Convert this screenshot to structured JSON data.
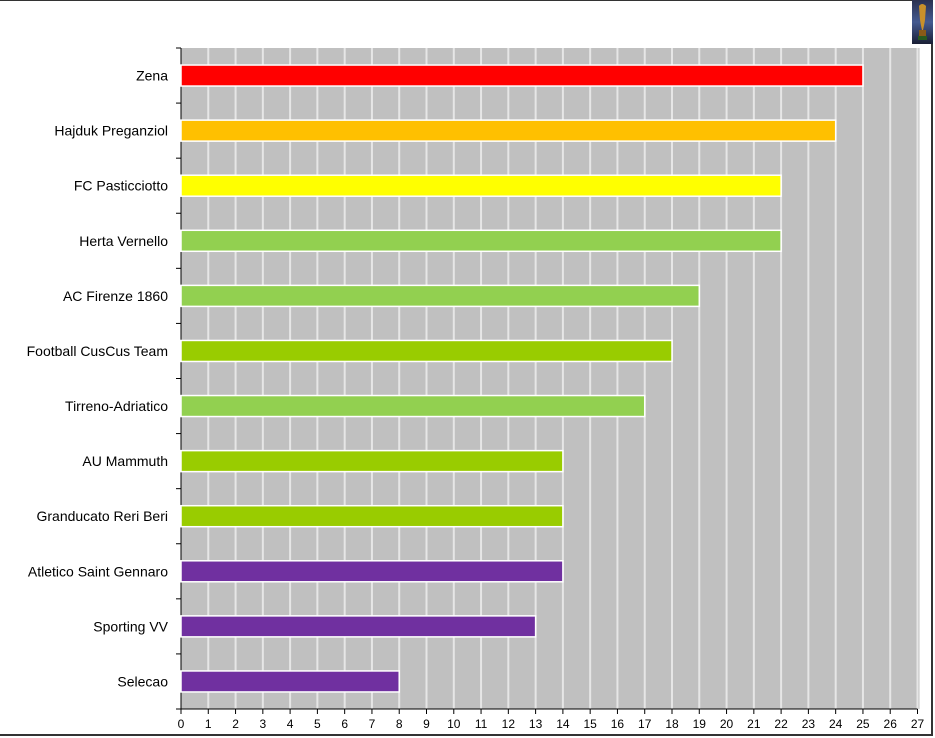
{
  "chart_data": {
    "type": "bar",
    "orientation": "horizontal",
    "title": "",
    "xlabel": "",
    "ylabel": "",
    "xlim": [
      0,
      27
    ],
    "grid": true,
    "categories": [
      "Zena",
      "Hajduk Preganziol",
      "FC Pasticciotto",
      "Herta Vernello",
      "AC Firenze 1860",
      "Football CusCus Team",
      "Tirreno-Adriatico",
      "AU Mammuth",
      "Granducato Reri Beri",
      "Atletico Saint Gennaro",
      "Sporting VV",
      "Selecao"
    ],
    "values": [
      25,
      24,
      22,
      22,
      19,
      18,
      17,
      14,
      14,
      14,
      13,
      8
    ],
    "colors": [
      "#ff0000",
      "#ffc000",
      "#ffff00",
      "#92d050",
      "#92d050",
      "#99cc00",
      "#92d050",
      "#99cc00",
      "#99cc00",
      "#7030a0",
      "#7030a0",
      "#7030a0"
    ],
    "x_ticks": [
      "0",
      "1",
      "2",
      "3",
      "4",
      "5",
      "6",
      "7",
      "8",
      "9",
      "10",
      "11",
      "12",
      "13",
      "14",
      "15",
      "16",
      "17",
      "18",
      "19",
      "20",
      "21",
      "22",
      "23",
      "24",
      "25",
      "26",
      "27"
    ],
    "background_color": "#c0c0c0",
    "icon": "world-cup-trophy-icon"
  }
}
